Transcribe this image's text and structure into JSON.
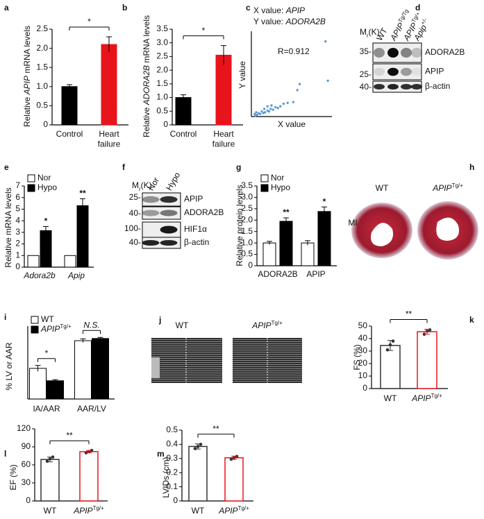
{
  "chart_data": [
    {
      "type": "bar",
      "panel": "a",
      "ylabel": [
        {
          "text": "Relative "
        },
        {
          "text": "APIP",
          "style": "i"
        },
        {
          "text": " mRNA levels"
        }
      ],
      "categories": [
        "Control",
        [
          "Heart",
          "failure"
        ]
      ],
      "series": [
        {
          "colors": [
            "#000000",
            "#e8141b"
          ],
          "values": [
            1.0,
            2.1
          ],
          "errors": [
            0.05,
            0.2
          ]
        }
      ],
      "ylim": [
        0,
        2.5
      ],
      "yticks": [
        0,
        0.5,
        {
          "value": 1,
          "label": "1.0"
        },
        1.5,
        {
          "value": 2,
          "label": "2.0"
        },
        2.5
      ],
      "bracket": "*"
    },
    {
      "type": "bar",
      "panel": "b",
      "ylabel": [
        {
          "text": "Relative "
        },
        {
          "text": "ADORA2B",
          "style": "i"
        },
        {
          "text": " mRNA levels"
        }
      ],
      "categories": [
        "Control",
        [
          "Heart",
          "failure"
        ]
      ],
      "series": [
        {
          "colors": [
            "#000000",
            "#e8141b"
          ],
          "values": [
            1.0,
            2.55
          ],
          "errors": [
            0.1,
            0.35
          ]
        }
      ],
      "ylim": [
        0,
        3.5
      ],
      "yticks": [
        0,
        0.5,
        {
          "value": 1,
          "label": "1.0"
        },
        1.5,
        {
          "value": 2,
          "label": "2.0"
        },
        2.5,
        {
          "value": 3,
          "label": "3.0"
        },
        3.5
      ],
      "bracket": "*"
    },
    {
      "type": "scatter",
      "panel": "c",
      "x_caption": [
        {
          "text": "X value: "
        },
        {
          "text": "APIP",
          "style": "i"
        }
      ],
      "y_caption": [
        {
          "text": "Y value: "
        },
        {
          "text": "ADORA2B",
          "style": "i"
        }
      ],
      "annotation": "R=0.912",
      "annotation_color": "#e8141b",
      "xlabel": "X value",
      "ylabel": "Y value",
      "color": "#5b9bd5",
      "xlim": [
        0,
        1
      ],
      "ylim": [
        0,
        1
      ],
      "x": [
        0.92,
        0.95,
        0.6,
        0.57,
        0.52,
        0.45,
        0.4,
        0.36,
        0.33,
        0.3,
        0.27,
        0.24,
        0.22,
        0.2,
        0.17,
        0.15,
        0.13,
        0.11,
        0.09,
        0.07,
        0.06,
        0.05,
        0.04,
        0.16,
        0.2,
        0.25
      ],
      "y": [
        0.88,
        0.42,
        0.38,
        0.31,
        0.17,
        0.16,
        0.15,
        0.12,
        0.1,
        0.11,
        0.08,
        0.09,
        0.06,
        0.07,
        0.05,
        0.04,
        0.06,
        0.03,
        0.04,
        0.02,
        0.05,
        0.01,
        0.03,
        0.09,
        0.12,
        0.13
      ]
    },
    {
      "type": "bar",
      "panel": "e",
      "ylabel": "Relative mRNA levels",
      "categories": [
        [
          {
            "text": "Adora2b",
            "style": "i"
          }
        ],
        [
          {
            "text": "Apip",
            "style": "i"
          }
        ]
      ],
      "series": [
        {
          "name": "Nor",
          "color": "#ffffff",
          "values": [
            1,
            1
          ]
        },
        {
          "name": "Hypo",
          "color": "#000000",
          "values": [
            3.15,
            5.3
          ],
          "errors": [
            0.35,
            0.6
          ],
          "stars": [
            "*",
            "**"
          ]
        }
      ],
      "ylim": [
        0,
        7
      ],
      "yticks": [
        0,
        1,
        2,
        3,
        4,
        5,
        6,
        7
      ]
    },
    {
      "type": "bar",
      "panel": "g",
      "ylabel": "Relative protein levels",
      "categories": [
        "ADORA2B",
        "APIP"
      ],
      "series": [
        {
          "name": "Nor",
          "color": "#ffffff",
          "values": [
            1,
            1
          ],
          "errors": [
            0.07,
            0.1
          ]
        },
        {
          "name": "Hypo",
          "color": "#000000",
          "values": [
            1.95,
            2.38
          ],
          "errors": [
            0.15,
            0.2
          ],
          "stars": [
            "**",
            "*"
          ]
        }
      ],
      "ylim": [
        0,
        3.5
      ],
      "yticks": [
        0,
        0.5,
        {
          "value": 1,
          "label": "1.0"
        },
        1.5,
        {
          "value": 2,
          "label": "2.0"
        },
        2.5,
        {
          "value": 3,
          "label": "3.0"
        },
        3.5
      ]
    },
    {
      "type": "bar",
      "panel": "i",
      "ylabel": "% LV or AAR",
      "categories": [
        "IA/AAR",
        "AAR/LV"
      ],
      "series": [
        {
          "name": "WT",
          "color": "#ffffff",
          "values": [
            42,
            80
          ],
          "errors": [
            4,
            2.5
          ]
        },
        {
          "name": [
            {
              "text": "APIP",
              "style": "i"
            },
            {
              "text": "Tg/+",
              "style": "sup"
            }
          ],
          "color": "#000000",
          "values": [
            25,
            83
          ],
          "errors": [
            1.5,
            1.5
          ]
        }
      ],
      "ylim": [
        0,
        100
      ],
      "group_brackets": [
        "*",
        [
          {
            "text": "N.S.",
            "style": "i"
          }
        ]
      ]
    },
    {
      "type": "bar",
      "panel": "k",
      "ylabel": "FS (%)",
      "categories": [
        "WT",
        [
          {
            "text": "APIP",
            "style": "i"
          },
          {
            "text": "Tg/+",
            "style": "sup"
          }
        ]
      ],
      "series": [
        {
          "colors": [
            "#333333",
            "#e8141b"
          ],
          "fill": "#ffffff",
          "values": [
            34.5,
            45.5
          ],
          "errors": [
            4,
            2
          ],
          "points": [
            [
              31,
              35,
              38
            ],
            [
              43.5,
              46,
              47
            ]
          ]
        }
      ],
      "ylim": [
        0,
        50
      ],
      "yticks": [
        0,
        10,
        20,
        30,
        40,
        50
      ],
      "bracket": "**"
    },
    {
      "type": "bar",
      "panel": "l",
      "ylabel": "EF (%)",
      "categories": [
        "WT",
        [
          {
            "text": "APIP",
            "style": "i"
          },
          {
            "text": "Tg/+",
            "style": "sup"
          }
        ]
      ],
      "series": [
        {
          "colors": [
            "#333333",
            "#e8141b"
          ],
          "fill": "#ffffff",
          "values": [
            69,
            82
          ],
          "errors": [
            4,
            2
          ],
          "points": [
            [
              66,
              70,
              73
            ],
            [
              80,
              82,
              84
            ]
          ]
        }
      ],
      "ylim": [
        0,
        120
      ],
      "yticks": [
        0,
        30,
        60,
        90,
        120
      ],
      "bracket": "**"
    },
    {
      "type": "bar",
      "panel": "m",
      "ylabel": "LVIDs (cm)",
      "categories": [
        "WT",
        [
          {
            "text": "APIP",
            "style": "i"
          },
          {
            "text": "Tg/+",
            "style": "sup"
          }
        ]
      ],
      "series": [
        {
          "colors": [
            "#333333",
            "#e8141b"
          ],
          "fill": "#ffffff",
          "values": [
            0.385,
            0.305
          ],
          "errors": [
            0.018,
            0.012
          ],
          "points": [
            [
              0.37,
              0.385,
              0.4
            ],
            [
              0.295,
              0.305,
              0.315
            ]
          ]
        }
      ],
      "ylim": [
        0,
        0.5
      ],
      "yticks": [
        0,
        0.1,
        0.2,
        0.3,
        0.4,
        0.5
      ],
      "bracket": "**"
    }
  ],
  "blots": [
    {
      "panel": "d",
      "mr": [
        {
          "text": "M"
        },
        {
          "text": "r",
          "style": "sub"
        },
        {
          "text": "(K)"
        }
      ],
      "lanes": [
        "WT",
        [
          {
            "text": "APIP",
            "style": "i"
          },
          {
            "text": "Tg/Tg",
            "style": "sup"
          }
        ],
        [
          {
            "text": "APIP",
            "style": "i"
          },
          {
            "text": "Tg/+",
            "style": "sup"
          }
        ],
        [
          {
            "text": "Apip",
            "style": "i"
          },
          {
            "text": "+/-",
            "style": "sup"
          }
        ]
      ],
      "markers": [
        "35-",
        "25-",
        "40-"
      ],
      "rows": [
        "ADORA2B",
        "APIP",
        "β-actin"
      ]
    },
    {
      "panel": "f",
      "mr": [
        {
          "text": "M"
        },
        {
          "text": "r",
          "style": "sub"
        },
        {
          "text": "(K)"
        }
      ],
      "lanes": [
        "Nor",
        "Hypo"
      ],
      "markers": [
        "25-",
        "40-",
        "100-",
        "40-"
      ],
      "rows": [
        "APIP",
        "ADORA2B",
        "HIF1α",
        "β-actin"
      ]
    }
  ],
  "images": [
    {
      "panel": "h",
      "labels": [
        "WT",
        [
          {
            "text": "APIP",
            "style": "i"
          },
          {
            "text": "Tg/+",
            "style": "sup"
          }
        ]
      ],
      "side_label": "MI"
    },
    {
      "panel": "j",
      "labels": [
        "WT",
        [
          {
            "text": "APIP",
            "style": "i"
          },
          {
            "text": "Tg/+",
            "style": "sup"
          }
        ]
      ]
    }
  ]
}
